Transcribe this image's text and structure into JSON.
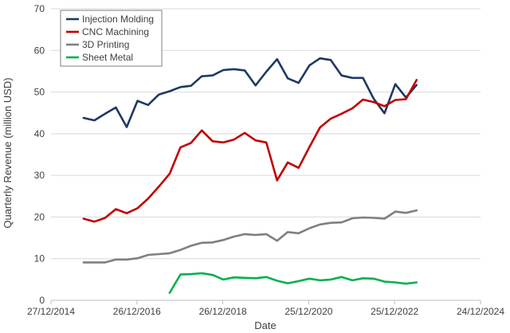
{
  "chart_data": {
    "type": "line",
    "xlabel": "Date",
    "ylabel": "Quarterly Revenue (million USD)",
    "x_ticks": [
      "27/12/2014",
      "26/12/2016",
      "26/12/2018",
      "25/12/2020",
      "25/12/2022",
      "24/12/2024"
    ],
    "ylim": [
      0,
      70
    ],
    "y_ticks": [
      0,
      10,
      20,
      30,
      40,
      50,
      60,
      70
    ],
    "grid": "horizontal",
    "legend_position": "top-left",
    "series": [
      {
        "name": "Injection Molding",
        "color": "#1f3864",
        "points": [
          [
            "2015-09-30",
            43.8
          ],
          [
            "2015-12-31",
            43.2
          ],
          [
            "2016-03-31",
            44.8
          ],
          [
            "2016-06-30",
            46.3
          ],
          [
            "2016-09-30",
            41.6
          ],
          [
            "2016-12-31",
            47.9
          ],
          [
            "2017-03-31",
            46.9
          ],
          [
            "2017-06-30",
            49.4
          ],
          [
            "2017-09-30",
            50.2
          ],
          [
            "2017-12-31",
            51.2
          ],
          [
            "2018-03-31",
            51.5
          ],
          [
            "2018-06-30",
            53.8
          ],
          [
            "2018-09-30",
            54.0
          ],
          [
            "2018-12-31",
            55.3
          ],
          [
            "2019-03-31",
            55.5
          ],
          [
            "2019-06-30",
            55.2
          ],
          [
            "2019-09-30",
            51.6
          ],
          [
            "2019-12-31",
            54.9
          ],
          [
            "2020-03-31",
            57.9
          ],
          [
            "2020-06-30",
            53.3
          ],
          [
            "2020-09-30",
            52.2
          ],
          [
            "2020-12-31",
            56.4
          ],
          [
            "2021-03-31",
            58.1
          ],
          [
            "2021-06-30",
            57.7
          ],
          [
            "2021-09-30",
            54.0
          ],
          [
            "2021-12-31",
            53.4
          ],
          [
            "2022-03-31",
            53.4
          ],
          [
            "2022-06-30",
            48.4
          ],
          [
            "2022-09-30",
            44.9
          ],
          [
            "2022-12-31",
            51.9
          ],
          [
            "2023-03-31",
            48.7
          ],
          [
            "2023-06-30",
            51.7
          ]
        ]
      },
      {
        "name": "CNC Machining",
        "color": "#c00000",
        "points": [
          [
            "2015-09-30",
            19.6
          ],
          [
            "2015-12-31",
            18.9
          ],
          [
            "2016-03-31",
            19.8
          ],
          [
            "2016-06-30",
            21.9
          ],
          [
            "2016-09-30",
            20.9
          ],
          [
            "2016-12-31",
            22.1
          ],
          [
            "2017-03-31",
            24.4
          ],
          [
            "2017-06-30",
            27.3
          ],
          [
            "2017-09-30",
            30.4
          ],
          [
            "2017-12-31",
            36.7
          ],
          [
            "2018-03-31",
            37.8
          ],
          [
            "2018-06-30",
            40.8
          ],
          [
            "2018-09-30",
            38.2
          ],
          [
            "2018-12-31",
            37.9
          ],
          [
            "2019-03-31",
            38.6
          ],
          [
            "2019-06-30",
            40.2
          ],
          [
            "2019-09-30",
            38.4
          ],
          [
            "2019-12-31",
            37.9
          ],
          [
            "2020-03-31",
            28.8
          ],
          [
            "2020-06-30",
            33.1
          ],
          [
            "2020-09-30",
            31.8
          ],
          [
            "2020-12-31",
            36.8
          ],
          [
            "2021-03-31",
            41.5
          ],
          [
            "2021-06-30",
            43.6
          ],
          [
            "2021-09-30",
            44.8
          ],
          [
            "2021-12-31",
            46.1
          ],
          [
            "2022-03-31",
            48.2
          ],
          [
            "2022-06-30",
            47.6
          ],
          [
            "2022-09-30",
            46.6
          ],
          [
            "2022-12-31",
            48.1
          ],
          [
            "2023-03-31",
            48.3
          ],
          [
            "2023-06-30",
            52.9
          ]
        ]
      },
      {
        "name": "3D Printing",
        "color": "#7f7f7f",
        "points": [
          [
            "2015-09-30",
            9.1
          ],
          [
            "2015-12-31",
            9.1
          ],
          [
            "2016-03-31",
            9.1
          ],
          [
            "2016-06-30",
            9.8
          ],
          [
            "2016-09-30",
            9.8
          ],
          [
            "2016-12-31",
            10.1
          ],
          [
            "2017-03-31",
            10.9
          ],
          [
            "2017-06-30",
            11.1
          ],
          [
            "2017-09-30",
            11.3
          ],
          [
            "2017-12-31",
            12.1
          ],
          [
            "2018-03-31",
            13.1
          ],
          [
            "2018-06-30",
            13.8
          ],
          [
            "2018-09-30",
            13.9
          ],
          [
            "2018-12-31",
            14.5
          ],
          [
            "2019-03-31",
            15.3
          ],
          [
            "2019-06-30",
            15.9
          ],
          [
            "2019-09-30",
            15.7
          ],
          [
            "2019-12-31",
            15.9
          ],
          [
            "2020-03-31",
            14.3
          ],
          [
            "2020-06-30",
            16.4
          ],
          [
            "2020-09-30",
            16.1
          ],
          [
            "2020-12-31",
            17.3
          ],
          [
            "2021-03-31",
            18.2
          ],
          [
            "2021-06-30",
            18.6
          ],
          [
            "2021-09-30",
            18.7
          ],
          [
            "2021-12-31",
            19.7
          ],
          [
            "2022-03-31",
            19.9
          ],
          [
            "2022-06-30",
            19.8
          ],
          [
            "2022-09-30",
            19.6
          ],
          [
            "2022-12-31",
            21.3
          ],
          [
            "2023-03-31",
            21.0
          ],
          [
            "2023-06-30",
            21.6
          ]
        ]
      },
      {
        "name": "Sheet Metal",
        "color": "#00b050",
        "points": [
          [
            "2017-09-30",
            1.8
          ],
          [
            "2017-12-31",
            6.2
          ],
          [
            "2018-03-31",
            6.3
          ],
          [
            "2018-06-30",
            6.5
          ],
          [
            "2018-09-30",
            6.1
          ],
          [
            "2018-12-31",
            5.0
          ],
          [
            "2019-03-31",
            5.5
          ],
          [
            "2019-06-30",
            5.4
          ],
          [
            "2019-09-30",
            5.3
          ],
          [
            "2019-12-31",
            5.6
          ],
          [
            "2020-03-31",
            4.7
          ],
          [
            "2020-06-30",
            4.1
          ],
          [
            "2020-09-30",
            4.6
          ],
          [
            "2020-12-31",
            5.2
          ],
          [
            "2021-03-31",
            4.8
          ],
          [
            "2021-06-30",
            5.0
          ],
          [
            "2021-09-30",
            5.6
          ],
          [
            "2021-12-31",
            4.8
          ],
          [
            "2022-03-31",
            5.3
          ],
          [
            "2022-06-30",
            5.2
          ],
          [
            "2022-09-30",
            4.5
          ],
          [
            "2022-12-31",
            4.3
          ],
          [
            "2023-03-31",
            4.0
          ],
          [
            "2023-06-30",
            4.3
          ]
        ]
      }
    ]
  }
}
